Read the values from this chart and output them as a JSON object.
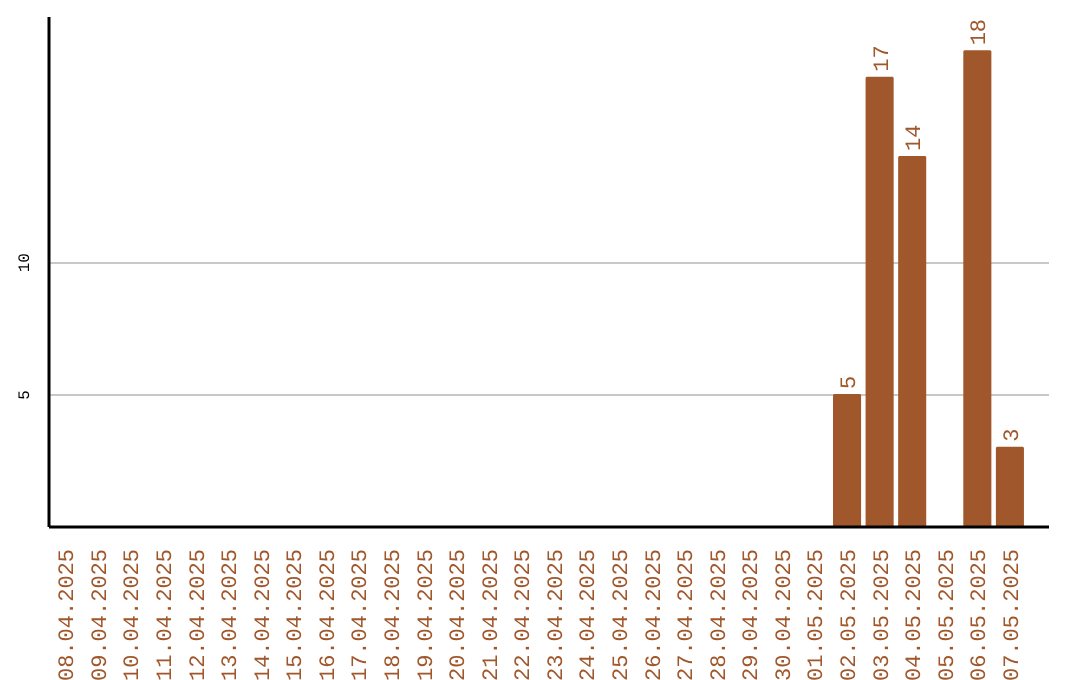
{
  "chart_data": {
    "type": "bar",
    "categories": [
      "08.04.2025",
      "09.04.2025",
      "10.04.2025",
      "11.04.2025",
      "12.04.2025",
      "13.04.2025",
      "14.04.2025",
      "15.04.2025",
      "16.04.2025",
      "17.04.2025",
      "18.04.2025",
      "19.04.2025",
      "20.04.2025",
      "21.04.2025",
      "22.04.2025",
      "23.04.2025",
      "24.04.2025",
      "25.04.2025",
      "26.04.2025",
      "27.04.2025",
      "28.04.2025",
      "29.04.2025",
      "30.04.2025",
      "01.05.2025",
      "02.05.2025",
      "03.05.2025",
      "04.05.2025",
      "05.05.2025",
      "06.05.2025",
      "07.05.2025"
    ],
    "values": [
      0,
      0,
      0,
      0,
      0,
      0,
      0,
      0,
      0,
      0,
      0,
      0,
      0,
      0,
      0,
      0,
      0,
      0,
      0,
      0,
      0,
      0,
      0,
      0,
      5,
      17,
      14,
      0,
      18,
      3
    ],
    "value_labels": [
      null,
      null,
      null,
      null,
      null,
      null,
      null,
      null,
      null,
      null,
      null,
      null,
      null,
      null,
      null,
      null,
      null,
      null,
      null,
      null,
      null,
      null,
      null,
      null,
      "5",
      "17",
      "14",
      null,
      "18",
      "3"
    ],
    "color": "#a0572b",
    "ylim": [
      0,
      19.3
    ],
    "yticks": [
      5,
      10
    ],
    "grid": "y"
  }
}
